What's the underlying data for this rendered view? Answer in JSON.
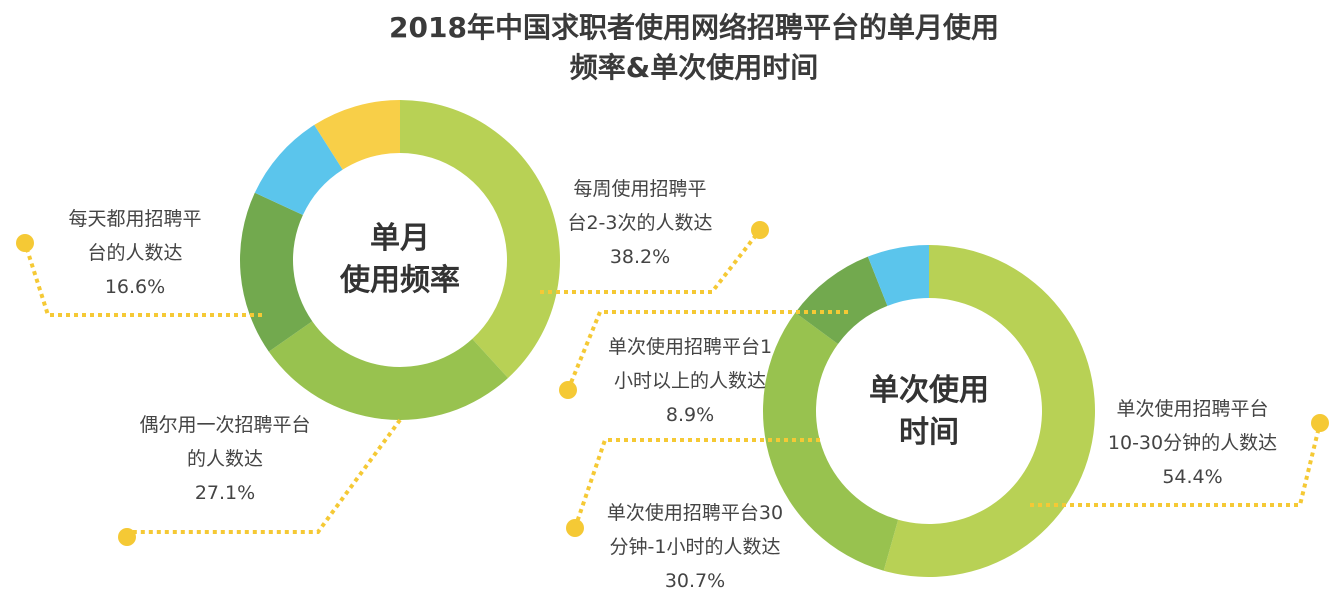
{
  "title_line1": "2018年中国求职者使用网络招聘平台的单月使用",
  "title_line2": "频率&单次使用时间",
  "chart_data": [
    {
      "type": "pie",
      "donut": true,
      "center_label": [
        "单月",
        "使用频率"
      ],
      "slices": [
        {
          "label": [
            "每周使用招聘平",
            "台2-3次的人数达"
          ],
          "value": 38.2,
          "display": "38.2%",
          "color": "#b8d155"
        },
        {
          "label": [
            "偶尔用一次招聘平台",
            "的人数达"
          ],
          "value": 27.1,
          "display": "27.1%",
          "color": "#98c24f"
        },
        {
          "label": [
            "每天都用招聘平",
            "台的人数达"
          ],
          "value": 16.6,
          "display": "16.6%",
          "color": "#72a94e"
        },
        {
          "label": [],
          "value": 9.1,
          "color": "#5bc5ec"
        },
        {
          "label": [],
          "value": 9.0,
          "color": "#f8cf48"
        }
      ]
    },
    {
      "type": "pie",
      "donut": true,
      "center_label": [
        "单次使用",
        "时间"
      ],
      "slices": [
        {
          "label": [
            "单次使用招聘平台",
            "10-30分钟的人数达"
          ],
          "value": 54.4,
          "display": "54.4%",
          "color": "#b8d155"
        },
        {
          "label": [
            "单次使用招聘平台30",
            "分钟-1小时的人数达"
          ],
          "value": 30.7,
          "display": "30.7%",
          "color": "#98c24f"
        },
        {
          "label": [
            "单次使用招聘平台1",
            "小时以上的人数达"
          ],
          "value": 8.9,
          "display": "8.9%",
          "color": "#72a94e"
        },
        {
          "label": [],
          "value": 6.0,
          "color": "#5bc5ec"
        }
      ]
    }
  ],
  "leader_color": "#f5c935"
}
